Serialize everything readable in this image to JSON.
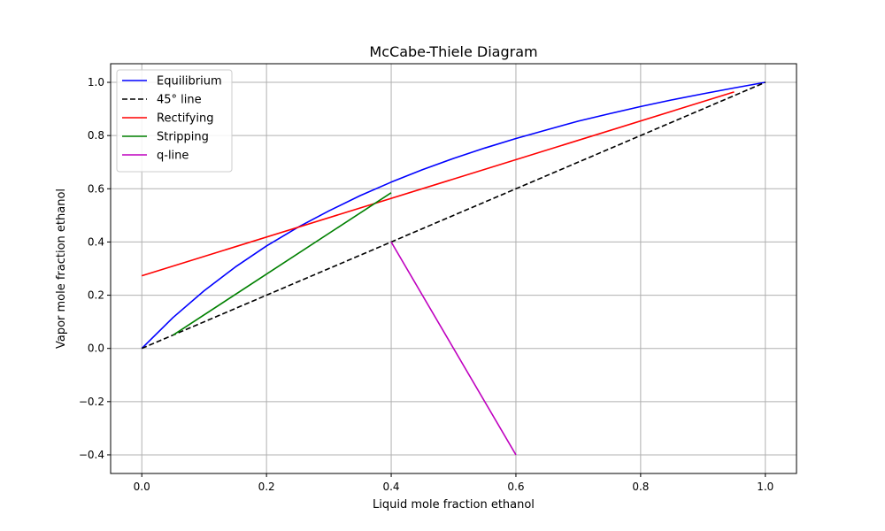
{
  "chart_data": {
    "type": "line",
    "title": "McCabe-Thiele Diagram",
    "xlabel": "Liquid mole fraction ethanol",
    "ylabel": "Vapor mole fraction ethanol",
    "xlim": [
      -0.05,
      1.05
    ],
    "ylim": [
      -0.47,
      1.07
    ],
    "xticks": [
      0.0,
      0.2,
      0.4,
      0.6,
      0.8,
      1.0
    ],
    "xtick_labels": [
      "0.0",
      "0.2",
      "0.4",
      "0.6",
      "0.8",
      "1.0"
    ],
    "yticks": [
      -0.4,
      -0.2,
      0.0,
      0.2,
      0.4,
      0.6,
      0.8,
      1.0
    ],
    "ytick_labels": [
      "−0.4",
      "−0.2",
      "0.0",
      "0.2",
      "0.4",
      "0.6",
      "0.8",
      "1.0"
    ],
    "grid": true,
    "legend_position": "top-left",
    "series": [
      {
        "name": "Equilibrium",
        "color": "#0000ff",
        "dash": "solid",
        "x": [
          0.0,
          0.05,
          0.1,
          0.15,
          0.2,
          0.25,
          0.3,
          0.35,
          0.4,
          0.45,
          0.5,
          0.55,
          0.6,
          0.65,
          0.7,
          0.75,
          0.8,
          0.85,
          0.9,
          0.95,
          1.0
        ],
        "y": [
          0.0,
          0.116,
          0.217,
          0.306,
          0.385,
          0.455,
          0.517,
          0.574,
          0.625,
          0.672,
          0.714,
          0.753,
          0.789,
          0.822,
          0.854,
          0.882,
          0.909,
          0.934,
          0.957,
          0.979,
          1.0
        ]
      },
      {
        "name": "45° line",
        "color": "#000000",
        "dash": "dashed",
        "x": [
          0.0,
          1.0
        ],
        "y": [
          0.0,
          1.0
        ]
      },
      {
        "name": "Rectifying",
        "color": "#ff0000",
        "dash": "solid",
        "x": [
          0.0,
          0.95
        ],
        "y": [
          0.273,
          0.964
        ]
      },
      {
        "name": "Stripping",
        "color": "#008000",
        "dash": "solid",
        "x": [
          0.05,
          0.4
        ],
        "y": [
          0.05,
          0.585
        ]
      },
      {
        "name": "q-line",
        "color": "#bf00bf",
        "dash": "solid",
        "x": [
          0.4,
          0.6
        ],
        "y": [
          0.4,
          -0.4
        ]
      }
    ]
  }
}
